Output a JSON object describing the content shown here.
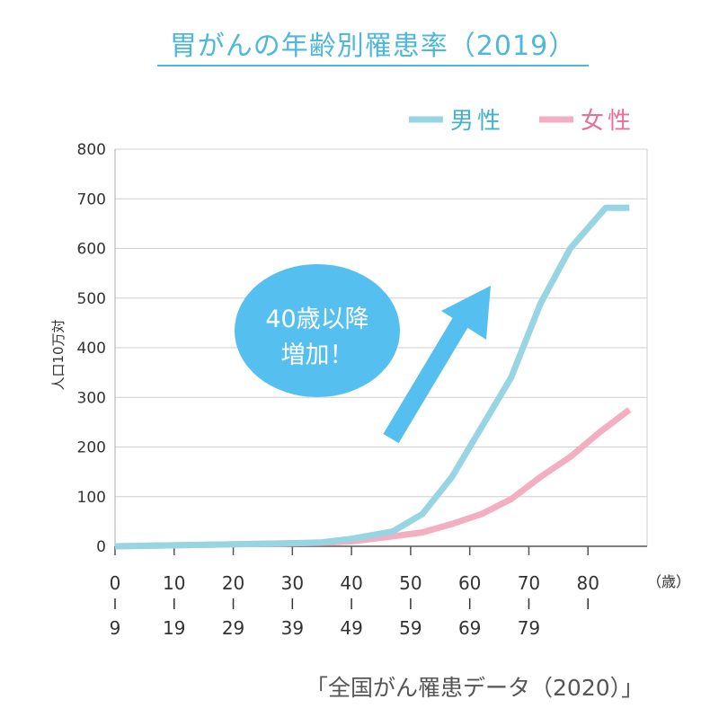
{
  "page": {
    "title": "胃がんの年齢別罹患率（2019）",
    "source": "「全国がん罹患データ（2020）」"
  },
  "chart_data": {
    "type": "line",
    "ylabel": "人口10万対",
    "ylim": [
      0,
      800
    ],
    "yticks": [
      0,
      100,
      200,
      300,
      400,
      500,
      600,
      700,
      800
    ],
    "grid": true,
    "legend_position": "top-right",
    "x_unit_label": "（歳）",
    "x_groups": [
      {
        "top": "0",
        "bottom": "9"
      },
      {
        "top": "10",
        "bottom": "19"
      },
      {
        "top": "20",
        "bottom": "29"
      },
      {
        "top": "30",
        "bottom": "39"
      },
      {
        "top": "40",
        "bottom": "49"
      },
      {
        "top": "50",
        "bottom": "59"
      },
      {
        "top": "60",
        "bottom": "69"
      },
      {
        "top": "70",
        "bottom": "79"
      },
      {
        "top": "80",
        "bottom": ""
      }
    ],
    "series": [
      {
        "name": "男性",
        "color": "#98d5e2",
        "x": [
          0,
          10,
          20,
          30,
          35,
          40,
          47,
          52,
          57,
          62,
          67,
          72,
          77,
          83,
          87
        ],
        "y": [
          0,
          2,
          4,
          6,
          8,
          15,
          30,
          65,
          140,
          240,
          340,
          490,
          600,
          682,
          682
        ]
      },
      {
        "name": "女性",
        "color": "#f4aec1",
        "x": [
          0,
          10,
          20,
          30,
          35,
          40,
          47,
          52,
          57,
          62,
          67,
          72,
          77,
          82,
          87
        ],
        "y": [
          0,
          2,
          4,
          6,
          7,
          10,
          20,
          28,
          45,
          65,
          95,
          140,
          180,
          230,
          275
        ]
      }
    ],
    "annotation": {
      "line1": "40歳以降",
      "line2": "増加！",
      "bubble_color": "#55bfef",
      "arrow_color": "#55bfef"
    }
  }
}
